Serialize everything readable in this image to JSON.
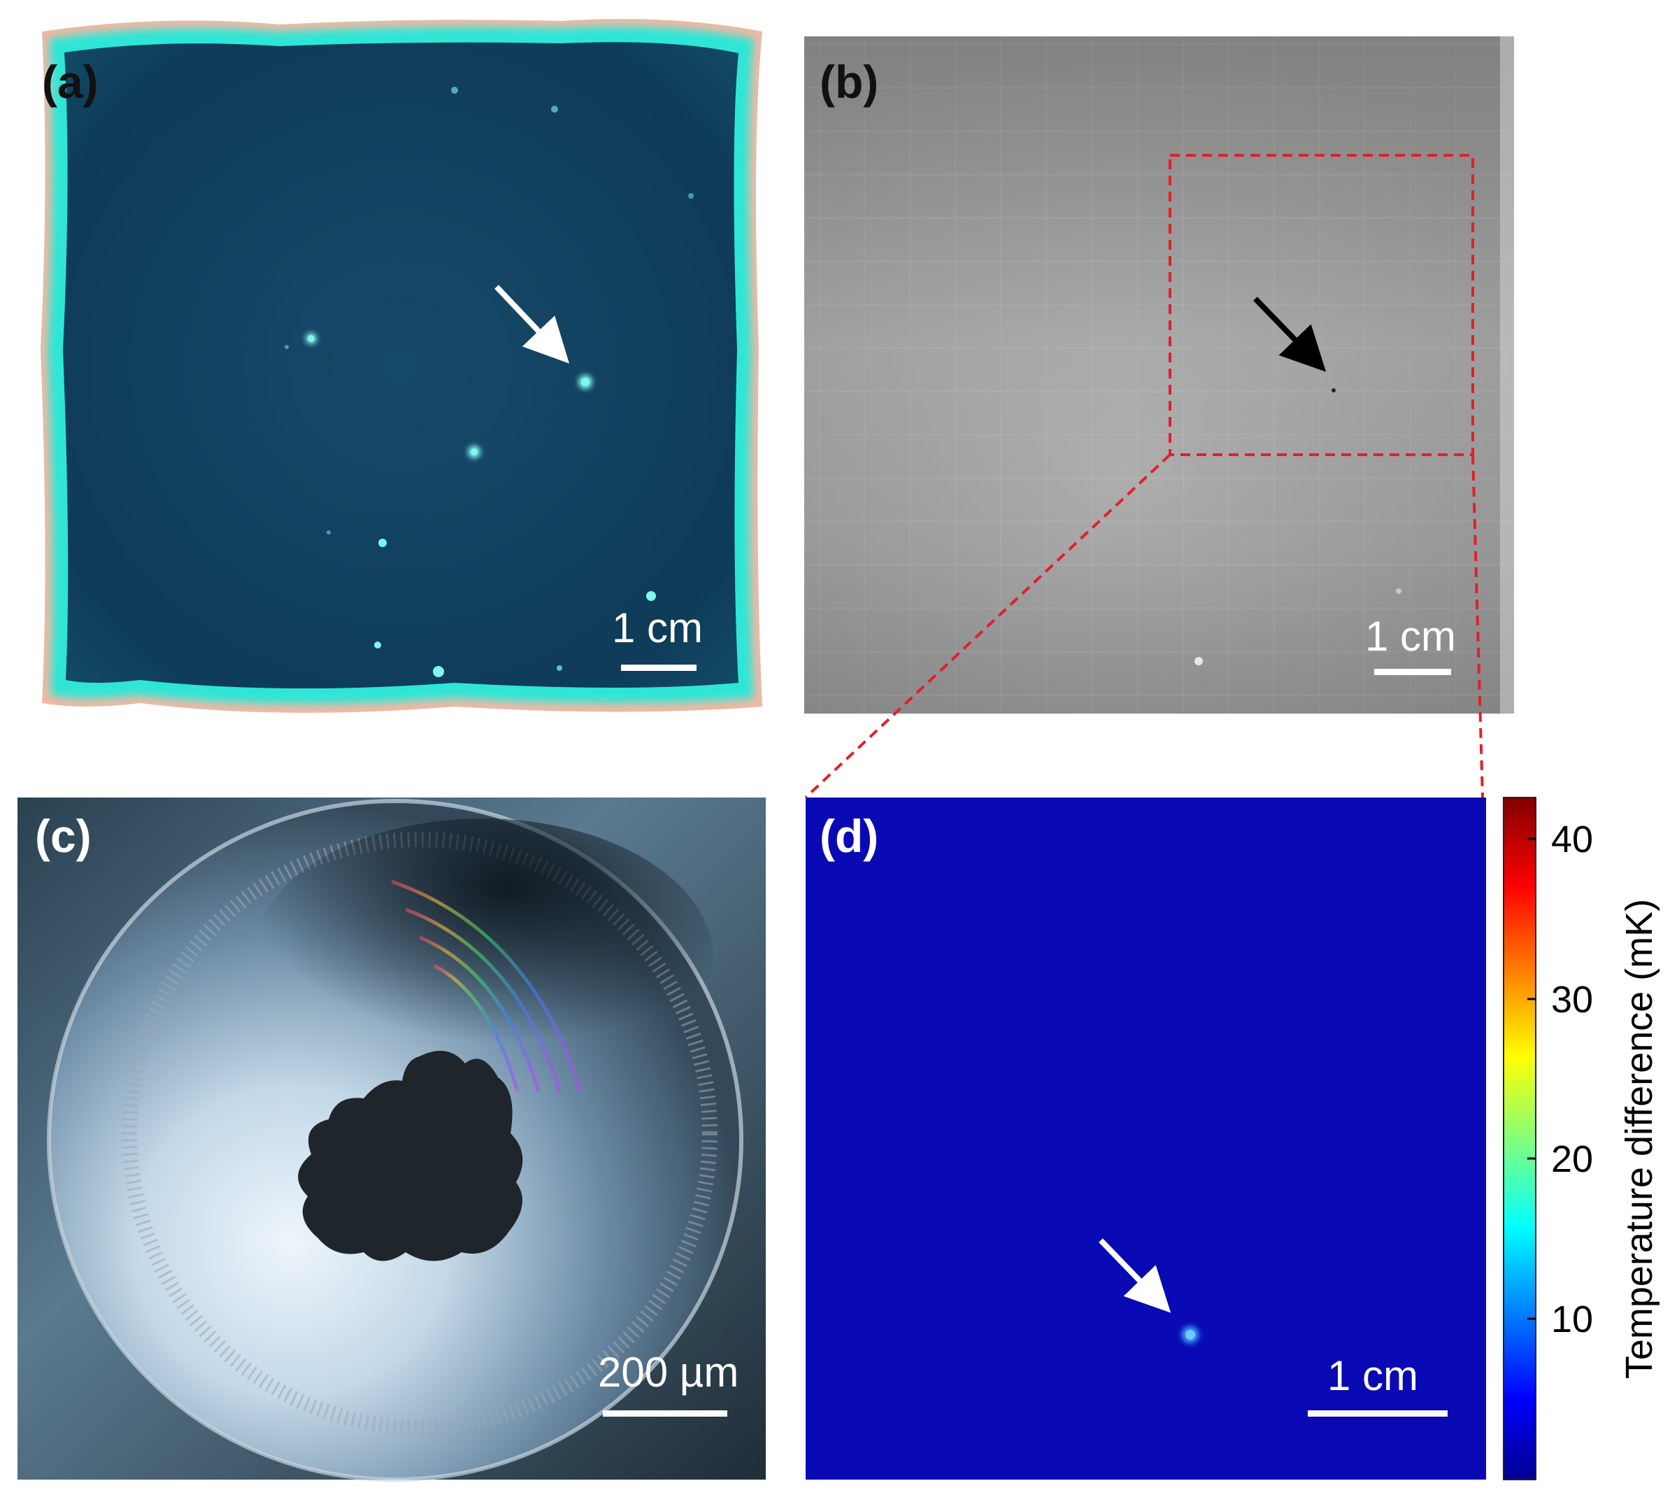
{
  "panels": {
    "a": {
      "label": "(a)",
      "scale_bar": "1 cm"
    },
    "b": {
      "label": "(b)",
      "scale_bar": "1 cm"
    },
    "c": {
      "label": "(c)",
      "scale_bar": "200 µm"
    },
    "d": {
      "label": "(d)",
      "scale_bar": "1 cm"
    }
  },
  "colorbar": {
    "label": "Temperature difference (mK)",
    "ticks": [
      "10",
      "20",
      "30",
      "40"
    ],
    "colormap": "jet"
  },
  "colors": {
    "panel_a_background": "#0f3e5c",
    "panel_a_border_glow": "#2fe6d6",
    "panel_b_background": "#9a9a9a",
    "zoom_box": "#e0202a",
    "panel_d_background": "#0a0ab4"
  }
}
